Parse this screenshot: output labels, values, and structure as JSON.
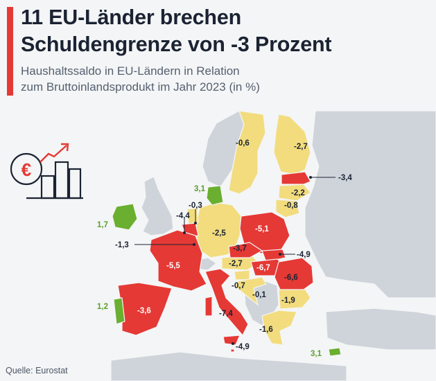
{
  "header": {
    "title_line1": "11 EU-Länder brechen",
    "title_line2": "Schuldengrenze von -3 Prozent",
    "subtitle_line1": "Haushaltssaldo in EU-Ländern in Relation",
    "subtitle_line2": "zum Bruttoinlandsprodukt im Jahr 2023 (in %)"
  },
  "footer": {
    "source": "Quelle: Eurostat"
  },
  "icon": {
    "name": "euro-growth-chart-icon"
  },
  "colors": {
    "over_limit": "#e53935",
    "deficit_within_limit": "#f2dc7d",
    "surplus": "#6aaf2f",
    "non_eu": "#cfd4da",
    "sea": "#f4f5f6"
  },
  "map_values": {
    "sweden": "-0,6",
    "finland": "-2,7",
    "estonia": "-3,4",
    "latvia": "-2,2",
    "lithuania": "-0,8",
    "denmark": "3,1",
    "ireland": "1,7",
    "netherlands": "-0,3",
    "belgium": "-4,4",
    "luxembourg": "-1,3",
    "germany": "-2,5",
    "poland": "-5,1",
    "czechia": "-3,7",
    "slovakia": "-4,9",
    "austria": "-2,7",
    "hungary": "-6,7",
    "romania": "-6,6",
    "france": "-5,5",
    "slovenia": "-0,7",
    "bulgaria": "-1,9",
    "croatia": "-0,1",
    "spain": "-3,6",
    "portugal": "1,2",
    "italy": "-7,4",
    "malta": "-4,9",
    "greece": "-1,6",
    "cyprus": "3,1"
  }
}
